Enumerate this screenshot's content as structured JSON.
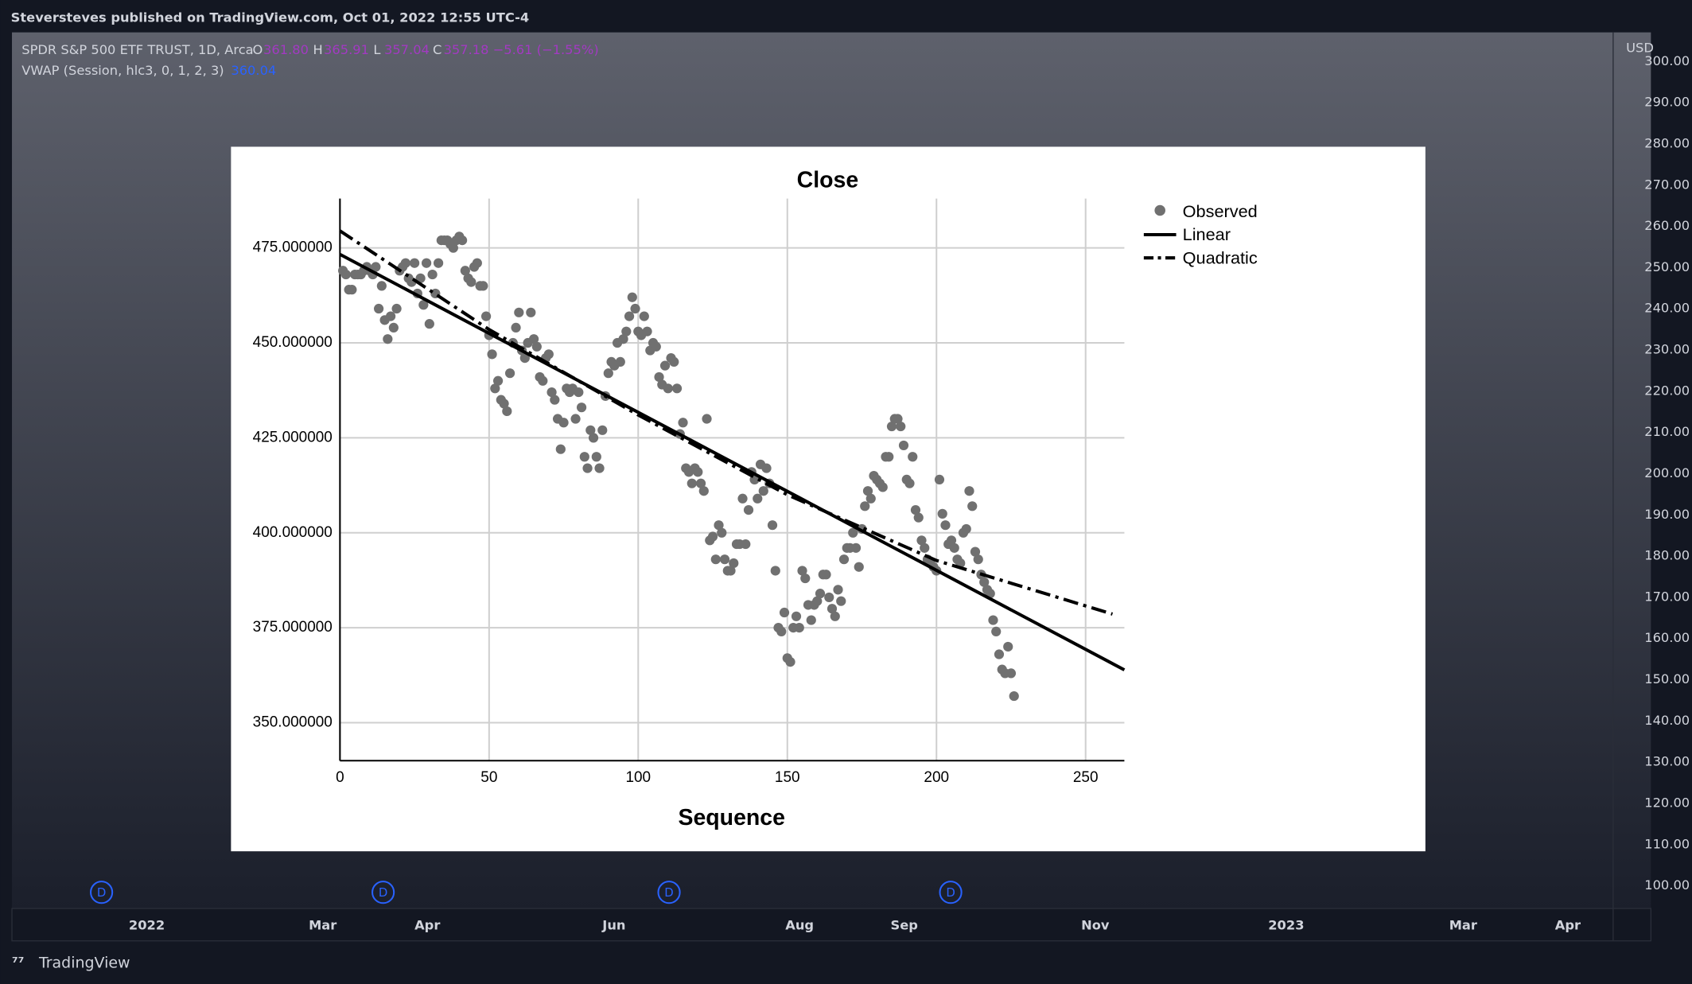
{
  "ui": {
    "header": "Steversteves published on TradingView.com, Oct 01, 2022 12:55 UTC-4",
    "symbol": "SPDR S&P 500 ETF TRUST, 1D, Arca",
    "ohlc": [
      {
        "key": "O",
        "value": "361.80"
      },
      {
        "key": "H",
        "value": "365.91"
      },
      {
        "key": "L",
        "value": "357.04"
      },
      {
        "key": "C",
        "value": "357.18 −5.61 (−1.55%)"
      }
    ],
    "vwap_label": "VWAP (Session, hlc3, 0, 1, 2, 3)",
    "vwap_value": "360.04",
    "currency": "USD",
    "price_labels": [
      "300.00",
      "290.00",
      "280.00",
      "270.00",
      "260.00",
      "250.00",
      "240.00",
      "230.00",
      "220.00",
      "210.00",
      "200.00",
      "190.00",
      "180.00",
      "170.00",
      "160.00",
      "150.00",
      "140.00",
      "130.00",
      "120.00",
      "110.00",
      "100.00"
    ],
    "date_labels": [
      "2022",
      "Mar",
      "Apr",
      "Jun",
      "Aug",
      "Sep",
      "Nov",
      "2023",
      "Mar",
      "Apr"
    ],
    "markers": [
      "D",
      "D",
      "D",
      "D"
    ],
    "brand": "TradingView"
  },
  "chart_data": {
    "type": "scatter",
    "title": "Close",
    "x_label": "Sequence",
    "xlim": [
      0,
      263
    ],
    "ylim": [
      340,
      488
    ],
    "xticks": [
      0,
      50,
      100,
      150,
      200,
      250
    ],
    "yticks": [
      {
        "value": 350,
        "label": "350.000000"
      },
      {
        "value": 375,
        "label": "375.000000"
      },
      {
        "value": 400,
        "label": "400.000000"
      },
      {
        "value": 425,
        "label": "425.000000"
      },
      {
        "value": 450,
        "label": "450.000000"
      },
      {
        "value": 475,
        "label": "475.000000"
      }
    ],
    "grid": true,
    "legend": "upper right",
    "series": [
      {
        "name": "Observed",
        "style": "points",
        "color": "#707070",
        "x": [
          1,
          2,
          3,
          4,
          5,
          6,
          7,
          8,
          9,
          10,
          11,
          12,
          13,
          14,
          15,
          16,
          17,
          18,
          19,
          20,
          21,
          22,
          23,
          24,
          25,
          26,
          27,
          28,
          29,
          30,
          31,
          32,
          33,
          34,
          35,
          36,
          37,
          38,
          39,
          40,
          41,
          42,
          43,
          44,
          45,
          46,
          47,
          48,
          49,
          50,
          51,
          52,
          53,
          54,
          55,
          56,
          57,
          58,
          59,
          60,
          61,
          62,
          63,
          64,
          65,
          66,
          67,
          68,
          69,
          70,
          71,
          72,
          73,
          74,
          75,
          76,
          77,
          78,
          79,
          80,
          81,
          82,
          83,
          84,
          85,
          86,
          87,
          88,
          89,
          90,
          91,
          92,
          93,
          94,
          95,
          96,
          97,
          98,
          99,
          100,
          101,
          102,
          103,
          104,
          105,
          106,
          107,
          108,
          109,
          110,
          111,
          112,
          113,
          114,
          115,
          116,
          117,
          118,
          119,
          120,
          121,
          122,
          123,
          124,
          125,
          126,
          127,
          128,
          129,
          130,
          131,
          132,
          133,
          134,
          135,
          136,
          137,
          138,
          139,
          140,
          141,
          142,
          143,
          144,
          145,
          146,
          147,
          148,
          149,
          150,
          151,
          152,
          153,
          154,
          155,
          156,
          157,
          158,
          159,
          160,
          161,
          162,
          163,
          164,
          165,
          166,
          167,
          168,
          169,
          170,
          171,
          172,
          173,
          174,
          175,
          176,
          177,
          178,
          179,
          180,
          181,
          182,
          183,
          184,
          185,
          186,
          187,
          188,
          189,
          190,
          191,
          192,
          193,
          194,
          195,
          196,
          197,
          198,
          199,
          200,
          201,
          202,
          203,
          204,
          205,
          206,
          207,
          208,
          209,
          210,
          211,
          212,
          213,
          214,
          215,
          216,
          217,
          218,
          219,
          220,
          221,
          222,
          223,
          224,
          225,
          226
        ],
        "values": [
          469,
          468,
          464,
          464,
          468,
          468,
          468,
          469,
          470,
          469,
          468,
          470,
          459,
          465,
          456,
          451,
          457,
          454,
          459,
          469,
          470,
          471,
          467,
          466,
          471,
          463,
          467,
          460,
          471,
          455,
          468,
          463,
          471,
          477,
          477,
          477,
          476,
          475,
          477,
          478,
          477,
          469,
          467,
          466,
          470,
          471,
          465,
          465,
          457,
          452,
          447,
          438,
          440,
          435,
          434,
          432,
          442,
          450,
          454,
          458,
          448,
          446,
          450,
          458,
          451,
          449,
          441,
          440,
          446,
          447,
          437,
          435,
          430,
          422,
          429,
          438,
          437,
          438,
          430,
          437,
          433,
          420,
          417,
          427,
          425,
          420,
          417,
          427,
          436,
          442,
          445,
          444,
          450,
          445,
          451,
          453,
          457,
          462,
          459,
          453,
          452,
          457,
          453,
          448,
          450,
          449,
          441,
          439,
          444,
          438,
          446,
          445,
          438,
          426,
          429,
          417,
          416,
          413,
          417,
          416,
          413,
          411,
          430,
          398,
          399,
          393,
          402,
          400,
          393,
          390,
          390,
          392,
          397,
          397,
          409,
          397,
          406,
          416,
          414,
          409,
          418,
          411,
          417,
          413,
          402,
          390,
          375,
          374,
          379,
          367,
          366,
          375,
          378,
          375,
          390,
          388,
          381,
          377,
          381,
          382,
          384,
          389,
          389,
          383,
          380,
          378,
          385,
          382,
          393,
          396,
          396,
          400,
          396,
          391,
          401,
          407,
          411,
          409,
          415,
          414,
          413,
          412,
          420,
          420,
          428,
          430,
          430,
          428,
          423,
          414,
          413,
          420,
          406,
          404,
          398,
          396,
          393,
          392,
          391,
          390,
          414,
          405,
          402,
          397,
          398,
          396,
          393,
          392,
          400,
          401,
          411,
          407,
          395,
          393,
          389,
          387,
          385,
          384,
          377,
          374,
          368,
          364,
          363,
          370,
          363,
          357
        ]
      },
      {
        "name": "Linear",
        "style": "solid",
        "color": "#000000",
        "x": [
          0,
          263
        ],
        "values": [
          473.3,
          363.9
        ]
      },
      {
        "name": "Quadratic",
        "style": "dashdot",
        "color": "#000000",
        "x": [
          0,
          50,
          100,
          150,
          200,
          259
        ],
        "values": [
          479.5,
          453.5,
          431,
          410,
          392.7,
          378.6
        ]
      }
    ]
  }
}
